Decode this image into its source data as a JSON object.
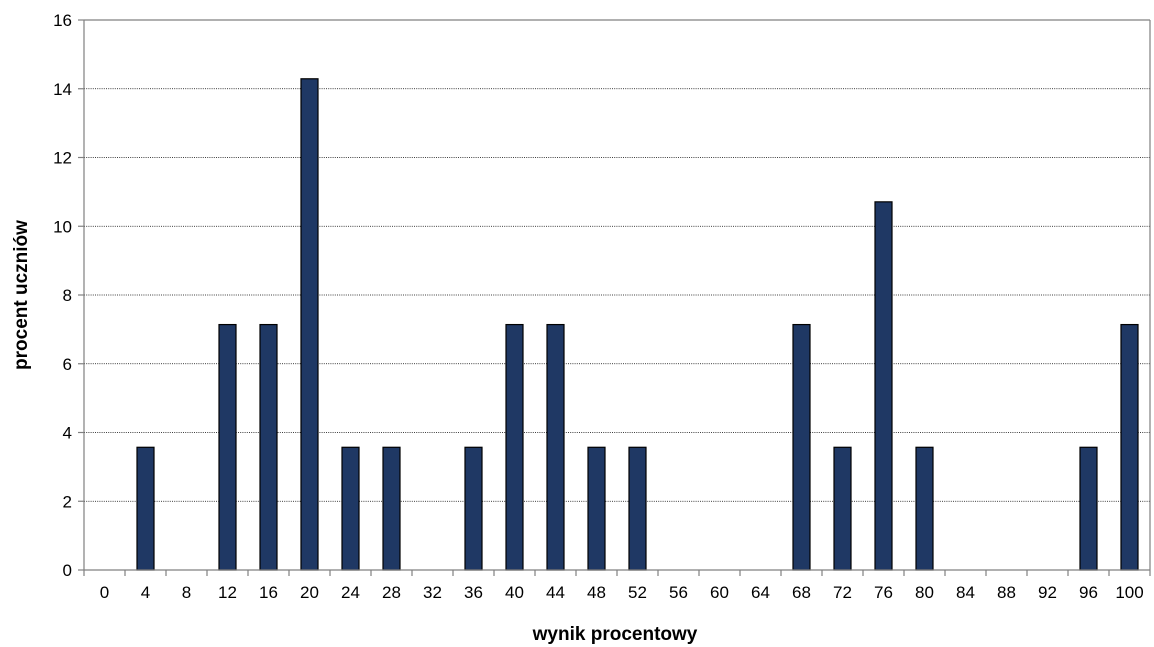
{
  "chart_data": {
    "type": "bar",
    "title": "",
    "xlabel": "wynik procentowy",
    "ylabel": "procent uczniów",
    "categories": [
      "0",
      "4",
      "8",
      "12",
      "16",
      "20",
      "24",
      "28",
      "32",
      "36",
      "40",
      "44",
      "48",
      "52",
      "56",
      "60",
      "64",
      "68",
      "72",
      "76",
      "80",
      "84",
      "88",
      "92",
      "96",
      "100"
    ],
    "values": [
      0,
      3.57,
      0,
      7.14,
      7.14,
      14.29,
      3.57,
      3.57,
      0,
      3.57,
      7.14,
      7.14,
      3.57,
      3.57,
      0,
      0,
      0,
      7.14,
      3.57,
      10.71,
      3.57,
      0,
      0,
      0,
      3.57,
      7.14
    ],
    "ylim": [
      0,
      16
    ],
    "yticks": [
      0,
      2,
      4,
      6,
      8,
      10,
      12,
      14,
      16
    ],
    "grid": true,
    "bar_color": "#1f3864"
  }
}
